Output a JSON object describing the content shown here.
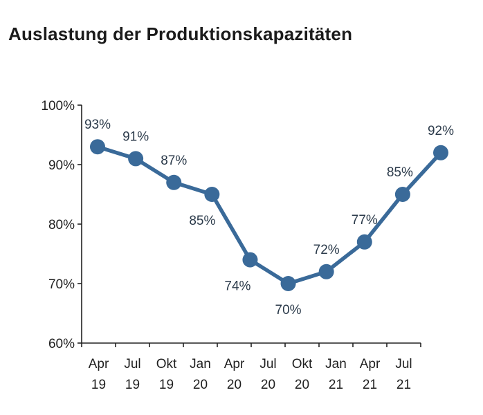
{
  "chart_data": {
    "type": "line",
    "title": "Auslastung der Produktionskapazitäten",
    "categories": [
      [
        "Apr",
        "19"
      ],
      [
        "Jul",
        "19"
      ],
      [
        "Okt",
        "19"
      ],
      [
        "Jan",
        "20"
      ],
      [
        "Apr",
        "20"
      ],
      [
        "Jul",
        "20"
      ],
      [
        "Okt",
        "20"
      ],
      [
        "Jan",
        "21"
      ],
      [
        "Apr",
        "21"
      ],
      [
        "Jul",
        "21"
      ]
    ],
    "series": [
      {
        "values": [
          93,
          91,
          87,
          85,
          74,
          70,
          72,
          77,
          85,
          92
        ],
        "labels": [
          "93%",
          "91%",
          "87%",
          "85%",
          "74%",
          "70%",
          "72%",
          "77%",
          "85%",
          "92%"
        ]
      }
    ],
    "ylim": [
      60,
      100
    ],
    "yticks": [
      "60%",
      "70%",
      "80%",
      "90%",
      "100%"
    ],
    "xlabel": "",
    "ylabel": "",
    "grid": false,
    "colors": {
      "line": "#3a6a99",
      "axis": "#222222"
    }
  }
}
